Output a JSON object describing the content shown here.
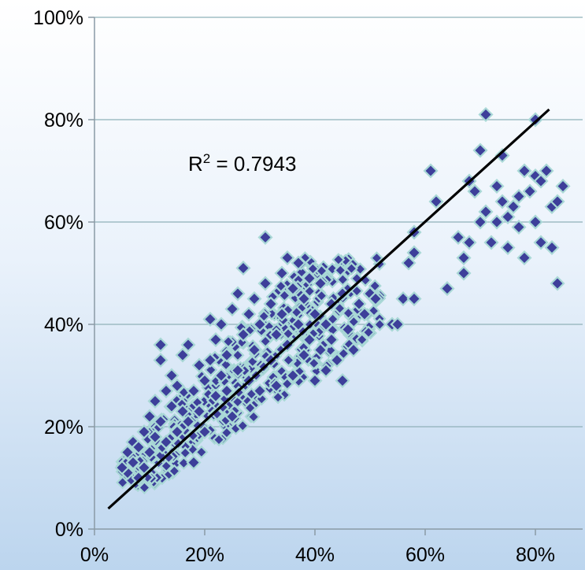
{
  "chart_data": {
    "type": "scatter",
    "title": "",
    "xlabel": "",
    "ylabel": "",
    "xlim": [
      0,
      0.87
    ],
    "ylim": [
      0,
      1.0
    ],
    "grid": {
      "horizontal": true,
      "vertical": false
    },
    "x_ticks": [
      {
        "value": 0.0,
        "label": "0%"
      },
      {
        "value": 0.2,
        "label": "20%"
      },
      {
        "value": 0.4,
        "label": "40%"
      },
      {
        "value": 0.6,
        "label": "60%"
      },
      {
        "value": 0.8,
        "label": "80%"
      }
    ],
    "y_ticks": [
      {
        "value": 0.0,
        "label": "0%"
      },
      {
        "value": 0.2,
        "label": "20%"
      },
      {
        "value": 0.4,
        "label": "40%"
      },
      {
        "value": 0.6,
        "label": "60%"
      },
      {
        "value": 0.8,
        "label": "80%"
      },
      {
        "value": 1.0,
        "label": "100%"
      }
    ],
    "trendline": {
      "x": [
        0.025,
        0.825
      ],
      "y": [
        0.04,
        0.82
      ],
      "label_prefix": "R",
      "label_sup": "2",
      "label_value": " = 0.7943",
      "label_pos": {
        "x": 0.17,
        "y": 0.7
      }
    },
    "marker_color": "#3d3f9a",
    "marker_edge_color": "#a9d8d6",
    "points": [
      {
        "x": 0.06,
        "y": 0.11
      },
      {
        "x": 0.07,
        "y": 0.13
      },
      {
        "x": 0.08,
        "y": 0.1
      },
      {
        "x": 0.09,
        "y": 0.12
      },
      {
        "x": 0.06,
        "y": 0.15
      },
      {
        "x": 0.07,
        "y": 0.17
      },
      {
        "x": 0.05,
        "y": 0.12
      },
      {
        "x": 0.08,
        "y": 0.16
      },
      {
        "x": 0.09,
        "y": 0.19
      },
      {
        "x": 0.1,
        "y": 0.15
      },
      {
        "x": 0.1,
        "y": 0.22
      },
      {
        "x": 0.11,
        "y": 0.18
      },
      {
        "x": 0.11,
        "y": 0.25
      },
      {
        "x": 0.12,
        "y": 0.21
      },
      {
        "x": 0.12,
        "y": 0.36
      },
      {
        "x": 0.12,
        "y": 0.33
      },
      {
        "x": 0.13,
        "y": 0.27
      },
      {
        "x": 0.13,
        "y": 0.17
      },
      {
        "x": 0.14,
        "y": 0.24
      },
      {
        "x": 0.14,
        "y": 0.3
      },
      {
        "x": 0.15,
        "y": 0.19
      },
      {
        "x": 0.15,
        "y": 0.28
      },
      {
        "x": 0.16,
        "y": 0.23
      },
      {
        "x": 0.16,
        "y": 0.34
      },
      {
        "x": 0.17,
        "y": 0.36
      },
      {
        "x": 0.17,
        "y": 0.21
      },
      {
        "x": 0.18,
        "y": 0.27
      },
      {
        "x": 0.18,
        "y": 0.13
      },
      {
        "x": 0.19,
        "y": 0.32
      },
      {
        "x": 0.19,
        "y": 0.23
      },
      {
        "x": 0.2,
        "y": 0.29
      },
      {
        "x": 0.2,
        "y": 0.19
      },
      {
        "x": 0.21,
        "y": 0.41
      },
      {
        "x": 0.21,
        "y": 0.33
      },
      {
        "x": 0.22,
        "y": 0.26
      },
      {
        "x": 0.22,
        "y": 0.37
      },
      {
        "x": 0.23,
        "y": 0.3
      },
      {
        "x": 0.23,
        "y": 0.4
      },
      {
        "x": 0.24,
        "y": 0.34
      },
      {
        "x": 0.24,
        "y": 0.27
      },
      {
        "x": 0.25,
        "y": 0.43
      },
      {
        "x": 0.25,
        "y": 0.22
      },
      {
        "x": 0.26,
        "y": 0.46
      },
      {
        "x": 0.26,
        "y": 0.31
      },
      {
        "x": 0.27,
        "y": 0.51
      },
      {
        "x": 0.27,
        "y": 0.38
      },
      {
        "x": 0.28,
        "y": 0.29
      },
      {
        "x": 0.28,
        "y": 0.42
      },
      {
        "x": 0.29,
        "y": 0.45
      },
      {
        "x": 0.29,
        "y": 0.35
      },
      {
        "x": 0.3,
        "y": 0.27
      },
      {
        "x": 0.3,
        "y": 0.4
      },
      {
        "x": 0.31,
        "y": 0.57
      },
      {
        "x": 0.31,
        "y": 0.48
      },
      {
        "x": 0.32,
        "y": 0.33
      },
      {
        "x": 0.32,
        "y": 0.44
      },
      {
        "x": 0.33,
        "y": 0.38
      },
      {
        "x": 0.33,
        "y": 0.28
      },
      {
        "x": 0.34,
        "y": 0.5
      },
      {
        "x": 0.34,
        "y": 0.42
      },
      {
        "x": 0.35,
        "y": 0.53
      },
      {
        "x": 0.35,
        "y": 0.36
      },
      {
        "x": 0.36,
        "y": 0.47
      },
      {
        "x": 0.36,
        "y": 0.3
      },
      {
        "x": 0.37,
        "y": 0.52
      },
      {
        "x": 0.37,
        "y": 0.4
      },
      {
        "x": 0.38,
        "y": 0.45
      },
      {
        "x": 0.38,
        "y": 0.34
      },
      {
        "x": 0.39,
        "y": 0.49
      },
      {
        "x": 0.39,
        "y": 0.37
      },
      {
        "x": 0.4,
        "y": 0.42
      },
      {
        "x": 0.4,
        "y": 0.29
      },
      {
        "x": 0.41,
        "y": 0.48
      },
      {
        "x": 0.41,
        "y": 0.35
      },
      {
        "x": 0.42,
        "y": 0.4
      },
      {
        "x": 0.42,
        "y": 0.31
      },
      {
        "x": 0.43,
        "y": 0.44
      },
      {
        "x": 0.43,
        "y": 0.37
      },
      {
        "x": 0.44,
        "y": 0.33
      },
      {
        "x": 0.45,
        "y": 0.46
      },
      {
        "x": 0.45,
        "y": 0.29
      },
      {
        "x": 0.46,
        "y": 0.39
      },
      {
        "x": 0.47,
        "y": 0.35
      },
      {
        "x": 0.48,
        "y": 0.44
      },
      {
        "x": 0.49,
        "y": 0.42
      },
      {
        "x": 0.5,
        "y": 0.46
      },
      {
        "x": 0.51,
        "y": 0.45
      },
      {
        "x": 0.54,
        "y": 0.4
      },
      {
        "x": 0.55,
        "y": 0.4
      },
      {
        "x": 0.56,
        "y": 0.45
      },
      {
        "x": 0.57,
        "y": 0.52
      },
      {
        "x": 0.58,
        "y": 0.54
      },
      {
        "x": 0.58,
        "y": 0.58
      },
      {
        "x": 0.58,
        "y": 0.45
      },
      {
        "x": 0.62,
        "y": 0.64
      },
      {
        "x": 0.61,
        "y": 0.7
      },
      {
        "x": 0.64,
        "y": 0.47
      },
      {
        "x": 0.66,
        "y": 0.57
      },
      {
        "x": 0.67,
        "y": 0.53
      },
      {
        "x": 0.67,
        "y": 0.5
      },
      {
        "x": 0.68,
        "y": 0.56
      },
      {
        "x": 0.68,
        "y": 0.68
      },
      {
        "x": 0.69,
        "y": 0.66
      },
      {
        "x": 0.7,
        "y": 0.74
      },
      {
        "x": 0.7,
        "y": 0.6
      },
      {
        "x": 0.71,
        "y": 0.81
      },
      {
        "x": 0.71,
        "y": 0.62
      },
      {
        "x": 0.72,
        "y": 0.56
      },
      {
        "x": 0.73,
        "y": 0.67
      },
      {
        "x": 0.73,
        "y": 0.6
      },
      {
        "x": 0.74,
        "y": 0.73
      },
      {
        "x": 0.74,
        "y": 0.64
      },
      {
        "x": 0.75,
        "y": 0.55
      },
      {
        "x": 0.75,
        "y": 0.61
      },
      {
        "x": 0.76,
        "y": 0.63
      },
      {
        "x": 0.77,
        "y": 0.65
      },
      {
        "x": 0.77,
        "y": 0.59
      },
      {
        "x": 0.78,
        "y": 0.7
      },
      {
        "x": 0.78,
        "y": 0.53
      },
      {
        "x": 0.79,
        "y": 0.66
      },
      {
        "x": 0.8,
        "y": 0.8
      },
      {
        "x": 0.8,
        "y": 0.69
      },
      {
        "x": 0.8,
        "y": 0.6
      },
      {
        "x": 0.81,
        "y": 0.56
      },
      {
        "x": 0.81,
        "y": 0.68
      },
      {
        "x": 0.82,
        "y": 0.7
      },
      {
        "x": 0.83,
        "y": 0.55
      },
      {
        "x": 0.83,
        "y": 0.63
      },
      {
        "x": 0.84,
        "y": 0.48
      },
      {
        "x": 0.84,
        "y": 0.64
      },
      {
        "x": 0.85,
        "y": 0.67
      }
    ]
  }
}
